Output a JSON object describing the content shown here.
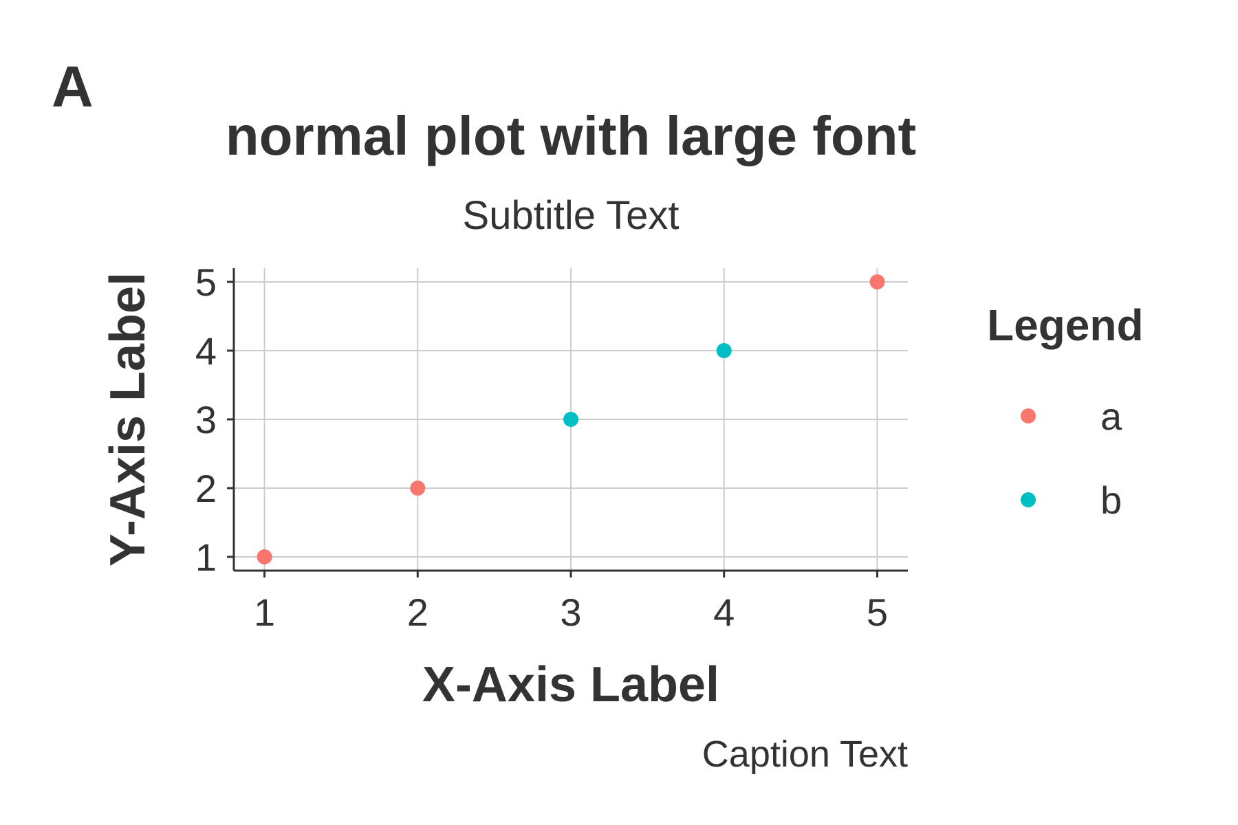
{
  "panel_tag": "A",
  "chart_data": {
    "type": "scatter",
    "title": "normal plot with large font",
    "subtitle": "Subtitle Text",
    "xlabel": "X-Axis Label",
    "ylabel": "Y-Axis Label",
    "caption": "Caption Text",
    "xlim": [
      0.8,
      5.2
    ],
    "ylim": [
      0.8,
      5.2
    ],
    "x_ticks": [
      1,
      2,
      3,
      4,
      5
    ],
    "y_ticks": [
      1,
      2,
      3,
      4,
      5
    ],
    "grid": true,
    "legend": {
      "title": "Legend",
      "position": "right",
      "entries": [
        {
          "label": "a",
          "color": "#F8766D"
        },
        {
          "label": "b",
          "color": "#00BFC4"
        }
      ]
    },
    "series": [
      {
        "name": "a",
        "color": "#F8766D",
        "points": [
          {
            "x": 1,
            "y": 1
          },
          {
            "x": 2,
            "y": 2
          },
          {
            "x": 5,
            "y": 5
          }
        ]
      },
      {
        "name": "b",
        "color": "#00BFC4",
        "points": [
          {
            "x": 3,
            "y": 3
          },
          {
            "x": 4,
            "y": 4
          }
        ]
      }
    ]
  }
}
